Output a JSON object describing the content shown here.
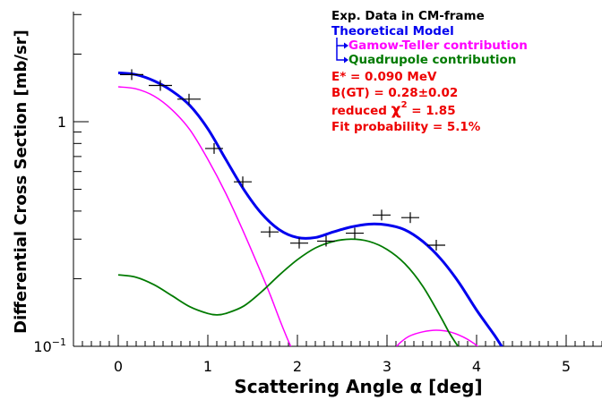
{
  "chart_data": {
    "type": "scatter",
    "xlabel": "Scattering Angle α [deg]",
    "ylabel": "Differential Cross Section [mb/sr]",
    "xlim": [
      -0.45,
      5.4
    ],
    "ylim": [
      0.1,
      3.0
    ],
    "yscale": "log",
    "x_ticks": [
      "0",
      "1",
      "2",
      "3",
      "4",
      "5"
    ],
    "y_ticks": [
      {
        "value": 1,
        "label": "1"
      },
      {
        "value": 0.1,
        "label": "10",
        "sup": "−1"
      }
    ],
    "data_points": {
      "name": "Exp. Data in CM-frame",
      "color": "#000000",
      "points": [
        {
          "x": 0.15,
          "y": 1.62,
          "xerr": 0.13
        },
        {
          "x": 0.47,
          "y": 1.45,
          "xerr": 0.13
        },
        {
          "x": 0.79,
          "y": 1.26,
          "xerr": 0.13
        },
        {
          "x": 1.07,
          "y": 0.76,
          "xerr": 0.1
        },
        {
          "x": 1.39,
          "y": 0.54,
          "xerr": 0.1
        },
        {
          "x": 1.69,
          "y": 0.323,
          "xerr": 0.1
        },
        {
          "x": 2.02,
          "y": 0.288,
          "xerr": 0.1
        },
        {
          "x": 2.32,
          "y": 0.294,
          "xerr": 0.1
        },
        {
          "x": 2.64,
          "y": 0.319,
          "xerr": 0.1
        },
        {
          "x": 2.94,
          "y": 0.384,
          "xerr": 0.1
        },
        {
          "x": 3.26,
          "y": 0.374,
          "xerr": 0.1
        },
        {
          "x": 3.55,
          "y": 0.282,
          "xerr": 0.1
        }
      ]
    },
    "series": [
      {
        "name": "Theoretical Model",
        "color": "#0000ee",
        "x": [
          0,
          0.2,
          0.4,
          0.6,
          0.8,
          1.0,
          1.2,
          1.4,
          1.6,
          1.8,
          2.0,
          2.2,
          2.4,
          2.6,
          2.8,
          3.0,
          3.2,
          3.4,
          3.6,
          3.8,
          4.0,
          4.2,
          4.3
        ],
        "y": [
          1.65,
          1.62,
          1.52,
          1.37,
          1.18,
          0.93,
          0.68,
          0.5,
          0.39,
          0.33,
          0.305,
          0.305,
          0.323,
          0.34,
          0.35,
          0.347,
          0.33,
          0.293,
          0.245,
          0.193,
          0.145,
          0.112,
          0.097
        ]
      },
      {
        "name": "Gamow-Teller contribution",
        "color": "#ff00ff",
        "segments": [
          {
            "x": [
              0,
              0.2,
              0.4,
              0.6,
              0.8,
              1.0,
              1.2,
              1.4,
              1.6,
              1.7,
              1.8,
              1.88,
              1.94
            ],
            "y": [
              1.43,
              1.4,
              1.3,
              1.13,
              0.92,
              0.68,
              0.48,
              0.322,
              0.21,
              0.168,
              0.132,
              0.11,
              0.097
            ]
          },
          {
            "x": [
              3.08,
              3.15,
              3.25,
              3.4,
              3.55,
              3.7,
              3.85,
              3.97,
              4.05
            ],
            "y": [
              0.097,
              0.104,
              0.111,
              0.116,
              0.118,
              0.116,
              0.11,
              0.103,
              0.097
            ]
          }
        ]
      },
      {
        "name": "Quadrupole contribution",
        "color": "#007a00",
        "x": [
          0,
          0.2,
          0.4,
          0.6,
          0.8,
          1.0,
          1.1,
          1.2,
          1.4,
          1.6,
          1.8,
          2.0,
          2.2,
          2.4,
          2.6,
          2.8,
          3.0,
          3.2,
          3.4,
          3.6,
          3.7,
          3.8,
          3.85
        ],
        "y": [
          0.208,
          0.203,
          0.188,
          0.168,
          0.15,
          0.14,
          0.138,
          0.14,
          0.151,
          0.175,
          0.208,
          0.243,
          0.274,
          0.293,
          0.3,
          0.293,
          0.27,
          0.233,
          0.185,
          0.135,
          0.114,
          0.099,
          0.093
        ]
      }
    ],
    "legend": {
      "placement": "top-right",
      "data_label": "Exp. Data in CM-frame",
      "model_label": "Theoretical Model",
      "gt_label": "Gamow-Teller contribution",
      "quad_label": "Quadrupole contribution"
    },
    "annotations": {
      "energy": "E* = 0.090 MeV",
      "bgt": "B(GT) = 0.28±0.02",
      "chi_prefix": "reduced ",
      "chi_symbol": "χ",
      "chi_power": "2",
      "chi_suffix": " = 1.85",
      "fit_prob": "Fit probability = 5.1%",
      "color": "#ee0000"
    }
  }
}
